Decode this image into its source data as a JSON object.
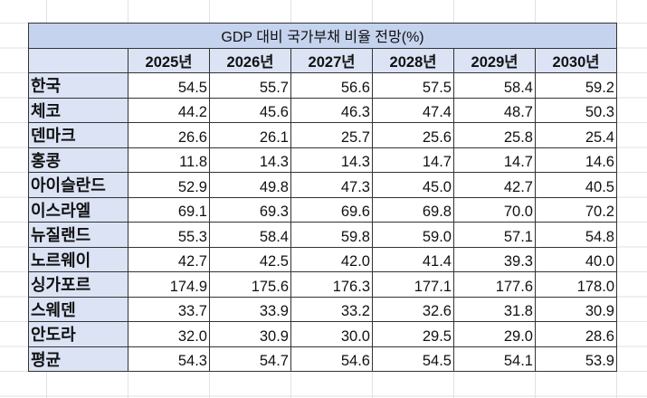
{
  "table": {
    "title": "GDP 대비 국가부채 비율 전망(%)",
    "columns": [
      "2025년",
      "2026년",
      "2027년",
      "2028년",
      "2029년",
      "2030년"
    ],
    "rows": [
      {
        "label": "한국",
        "values": [
          "54.5",
          "55.7",
          "56.6",
          "57.5",
          "58.4",
          "59.2"
        ]
      },
      {
        "label": "체코",
        "values": [
          "44.2",
          "45.6",
          "46.3",
          "47.4",
          "48.7",
          "50.3"
        ]
      },
      {
        "label": "덴마크",
        "values": [
          "26.6",
          "26.1",
          "25.7",
          "25.6",
          "25.8",
          "25.4"
        ]
      },
      {
        "label": "홍콩",
        "values": [
          "11.8",
          "14.3",
          "14.3",
          "14.7",
          "14.7",
          "14.6"
        ]
      },
      {
        "label": "아이슬란드",
        "values": [
          "52.9",
          "49.8",
          "47.3",
          "45.0",
          "42.7",
          "40.5"
        ]
      },
      {
        "label": "이스라엘",
        "values": [
          "69.1",
          "69.3",
          "69.6",
          "69.8",
          "70.0",
          "70.2"
        ]
      },
      {
        "label": "뉴질랜드",
        "values": [
          "55.3",
          "58.4",
          "59.8",
          "59.0",
          "57.1",
          "54.8"
        ]
      },
      {
        "label": "노르웨이",
        "values": [
          "42.7",
          "42.5",
          "42.0",
          "41.4",
          "39.3",
          "40.0"
        ]
      },
      {
        "label": "싱가포르",
        "values": [
          "174.9",
          "175.6",
          "176.3",
          "177.1",
          "177.6",
          "178.0"
        ]
      },
      {
        "label": "스웨덴",
        "values": [
          "33.7",
          "33.9",
          "33.2",
          "32.6",
          "31.8",
          "30.9"
        ]
      },
      {
        "label": "안도라",
        "values": [
          "32.0",
          "30.9",
          "30.0",
          "29.5",
          "29.0",
          "28.6"
        ]
      },
      {
        "label": "평균",
        "values": [
          "54.3",
          "54.7",
          "54.6",
          "54.5",
          "54.1",
          "53.9"
        ]
      }
    ]
  },
  "colors": {
    "title_fill": "#c5d3ee",
    "header_fill": "#dbe3f5",
    "border": "#333333",
    "gridline": "#e2e2e2"
  }
}
